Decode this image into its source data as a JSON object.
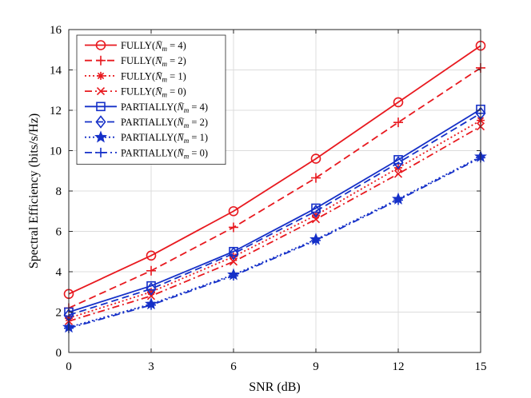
{
  "chart_data": {
    "type": "line",
    "title": "",
    "xlabel": "SNR (dB)",
    "ylabel": "Spectral Efficiency (bits/s/Hz)",
    "x": [
      0,
      3,
      6,
      9,
      12,
      15
    ],
    "xlim": [
      0,
      15
    ],
    "ylim": [
      0,
      16
    ],
    "xticks": [
      "0",
      "3",
      "6",
      "9",
      "12",
      "15"
    ],
    "yticks": [
      "0",
      "2",
      "4",
      "6",
      "8",
      "10",
      "12",
      "14",
      "16"
    ],
    "grid": true,
    "legend_position": "top-left",
    "series": [
      {
        "name": "FULLY(N̄m = 4)",
        "label_prefix": "FULLY(",
        "label_n": "N̄",
        "label_sub": "m",
        "label_val": " = 4)",
        "color": "#e8191f",
        "dash": "solid",
        "marker": "circle",
        "values": [
          2.9,
          4.8,
          7.0,
          9.6,
          12.4,
          15.2
        ]
      },
      {
        "name": "FULLY(N̄m = 2)",
        "label_prefix": "FULLY(",
        "label_n": "N̄",
        "label_sub": "m",
        "label_val": " = 2)",
        "color": "#e8191f",
        "dash": "dashed",
        "marker": "plus",
        "values": [
          2.2,
          4.05,
          6.2,
          8.65,
          11.4,
          14.1
        ]
      },
      {
        "name": "FULLY(N̄m = 1)",
        "label_prefix": "FULLY(",
        "label_n": "N̄",
        "label_sub": "m",
        "label_val": " = 1)",
        "color": "#e8191f",
        "dash": "dotted",
        "marker": "asterisk",
        "values": [
          1.7,
          3.0,
          4.75,
          6.8,
          9.15,
          11.5
        ]
      },
      {
        "name": "FULLY(N̄m = 0)",
        "label_prefix": "FULLY(",
        "label_n": "N̄",
        "label_sub": "m",
        "label_val": " = 0)",
        "color": "#e8191f",
        "dash": "dashdot",
        "marker": "x",
        "values": [
          1.55,
          2.8,
          4.5,
          6.6,
          8.85,
          11.2
        ]
      },
      {
        "name": "PARTIALLY(N̄m = 4)",
        "label_prefix": "PARTIALLY(",
        "label_n": "N̄",
        "label_sub": "m",
        "label_val": " = 4)",
        "color": "#1530c8",
        "dash": "solid",
        "marker": "square",
        "values": [
          2.0,
          3.3,
          5.0,
          7.15,
          9.55,
          12.05
        ]
      },
      {
        "name": "PARTIALLY(N̄m = 2)",
        "label_prefix": "PARTIALLY(",
        "label_n": "N̄",
        "label_sub": "m",
        "label_val": " = 2)",
        "color": "#1530c8",
        "dash": "dashed",
        "marker": "diamond",
        "values": [
          1.85,
          3.15,
          4.9,
          7.0,
          9.4,
          11.85
        ]
      },
      {
        "name": "PARTIALLY(N̄m = 1)",
        "label_prefix": "PARTIALLY(",
        "label_n": "N̄",
        "label_sub": "m",
        "label_val": " = 1)",
        "color": "#1530c8",
        "dash": "dotted",
        "marker": "star",
        "values": [
          1.25,
          2.4,
          3.85,
          5.6,
          7.6,
          9.7
        ]
      },
      {
        "name": "PARTIALLY(N̄m = 0)",
        "label_prefix": "PARTIALLY(",
        "label_n": "N̄",
        "label_sub": "m",
        "label_val": " = 0)",
        "color": "#1530c8",
        "dash": "dashdot",
        "marker": "plus",
        "values": [
          1.2,
          2.35,
          3.8,
          5.55,
          7.55,
          9.65
        ]
      }
    ]
  }
}
